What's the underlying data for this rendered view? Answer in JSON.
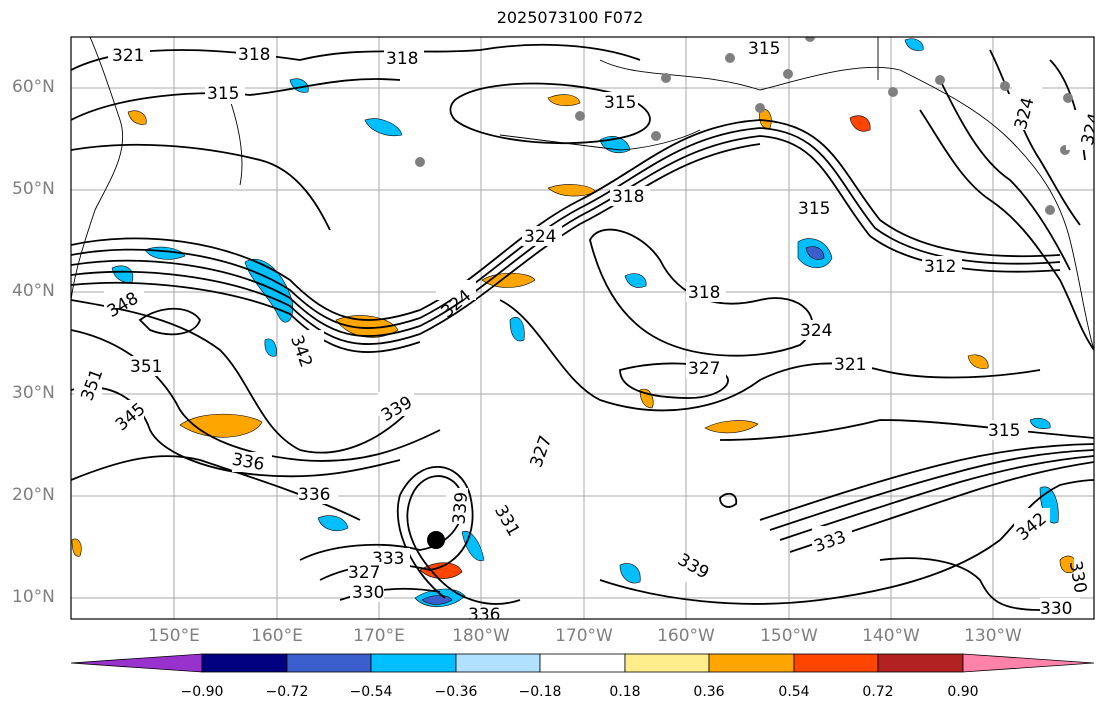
{
  "title": "2025073100 F072",
  "lat_labels": [
    "60°N",
    "50°N",
    "40°N",
    "30°N",
    "20°N",
    "10°N"
  ],
  "lon_labels": [
    "150°E",
    "160°E",
    "170°E",
    "180°W",
    "170°W",
    "160°W",
    "150°W",
    "140°W",
    "130°W"
  ],
  "contour_labels": [
    "321",
    "318",
    "318",
    "315",
    "315",
    "315",
    "318",
    "315",
    "312",
    "324",
    "324",
    "318",
    "318",
    "327",
    "324",
    "321",
    "324",
    "348",
    "351",
    "351",
    "345",
    "342",
    "339",
    "336",
    "336",
    "333",
    "327",
    "330",
    "339",
    "331",
    "327",
    "336",
    "315",
    "333",
    "342",
    "339",
    "330",
    "330",
    "324"
  ],
  "colorbar": {
    "ticks": [
      "−0.90",
      "−0.72",
      "−0.54",
      "−0.36",
      "−0.18",
      "0.18",
      "0.36",
      "0.54",
      "0.72",
      "0.90"
    ],
    "colors": [
      "#9932cc",
      "#000080",
      "#3a5fcd",
      "#00bfff",
      "#b0e2ff",
      "#ffffff",
      "#ffec8b",
      "#ffa500",
      "#ff4500",
      "#b22222",
      "#ff82ab"
    ]
  },
  "colors": {
    "contour": "#000000",
    "grid": "#a9a9a9",
    "tick_label": "#7f7f7f"
  }
}
